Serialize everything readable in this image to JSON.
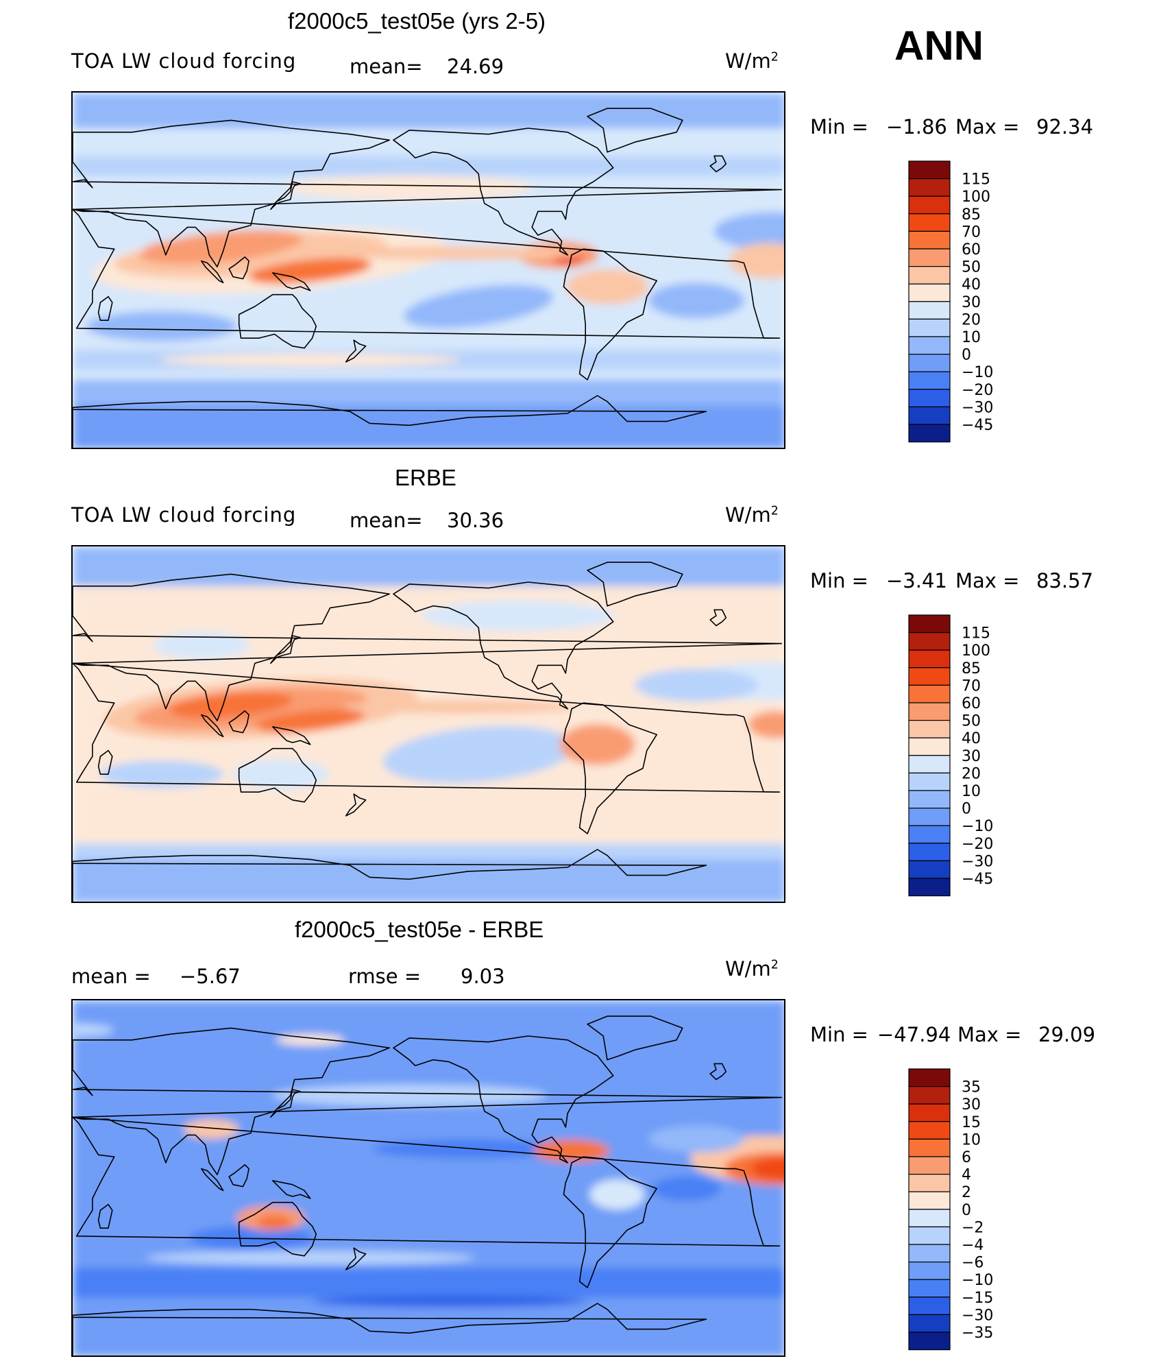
{
  "season": "ANN",
  "chart_data": [
    {
      "type": "heatmap",
      "name": "model",
      "title": "f2000c5_test05e (yrs 2-5)",
      "variable": "TOA LW cloud forcing",
      "mean_label": "mean=",
      "mean": "24.69",
      "units": "W/m",
      "units_exp": "2",
      "min_label": "Min =",
      "min": "−1.86",
      "max_label": "Max =",
      "max": "92.34",
      "colorbar": {
        "ticks": [
          "115",
          "100",
          "85",
          "70",
          "60",
          "50",
          "40",
          "30",
          "20",
          "10",
          "0",
          "−10",
          "−20",
          "−30",
          "−45"
        ],
        "colors": [
          "#7a0a0a",
          "#b3200e",
          "#d9300e",
          "#f04a14",
          "#f77338",
          "#f99c72",
          "#fbc6a6",
          "#fde8d8",
          "#d7e8fb",
          "#b8d3fb",
          "#93b8fa",
          "#6f9df7",
          "#4a80f5",
          "#2c5fe8",
          "#153fc0",
          "#0a1f8a"
        ]
      }
    },
    {
      "type": "heatmap",
      "name": "obs",
      "title": "ERBE",
      "variable": "TOA LW cloud forcing",
      "mean_label": "mean=",
      "mean": "30.36",
      "units": "W/m",
      "units_exp": "2",
      "min_label": "Min =",
      "min": "−3.41",
      "max_label": "Max =",
      "max": "83.57",
      "colorbar": {
        "ticks": [
          "115",
          "100",
          "85",
          "70",
          "60",
          "50",
          "40",
          "30",
          "20",
          "10",
          "0",
          "−10",
          "−20",
          "−30",
          "−45"
        ],
        "colors": [
          "#7a0a0a",
          "#b3200e",
          "#d9300e",
          "#f04a14",
          "#f77338",
          "#f99c72",
          "#fbc6a6",
          "#fde8d8",
          "#d7e8fb",
          "#b8d3fb",
          "#93b8fa",
          "#6f9df7",
          "#4a80f5",
          "#2c5fe8",
          "#153fc0",
          "#0a1f8a"
        ]
      }
    },
    {
      "type": "heatmap",
      "name": "diff",
      "title": "f2000c5_test05e - ERBE",
      "mean_label": "mean =",
      "mean": "−5.67",
      "rmse_label": "rmse =",
      "rmse": "9.03",
      "units": "W/m",
      "units_exp": "2",
      "min_label": "Min =",
      "min": "−47.94",
      "max_label": "Max =",
      "max": "29.09",
      "colorbar": {
        "ticks": [
          "35",
          "30",
          "15",
          "10",
          "6",
          "4",
          "2",
          "0",
          "−2",
          "−4",
          "−6",
          "−10",
          "−15",
          "−30",
          "−35"
        ],
        "colors": [
          "#7a0a0a",
          "#b3200e",
          "#d9300e",
          "#f04a14",
          "#f77338",
          "#f99c72",
          "#fbc6a6",
          "#fde8d8",
          "#d7e8fb",
          "#b8d3fb",
          "#93b8fa",
          "#6f9df7",
          "#4a80f5",
          "#2c5fe8",
          "#153fc0",
          "#0a1f8a"
        ]
      }
    }
  ]
}
